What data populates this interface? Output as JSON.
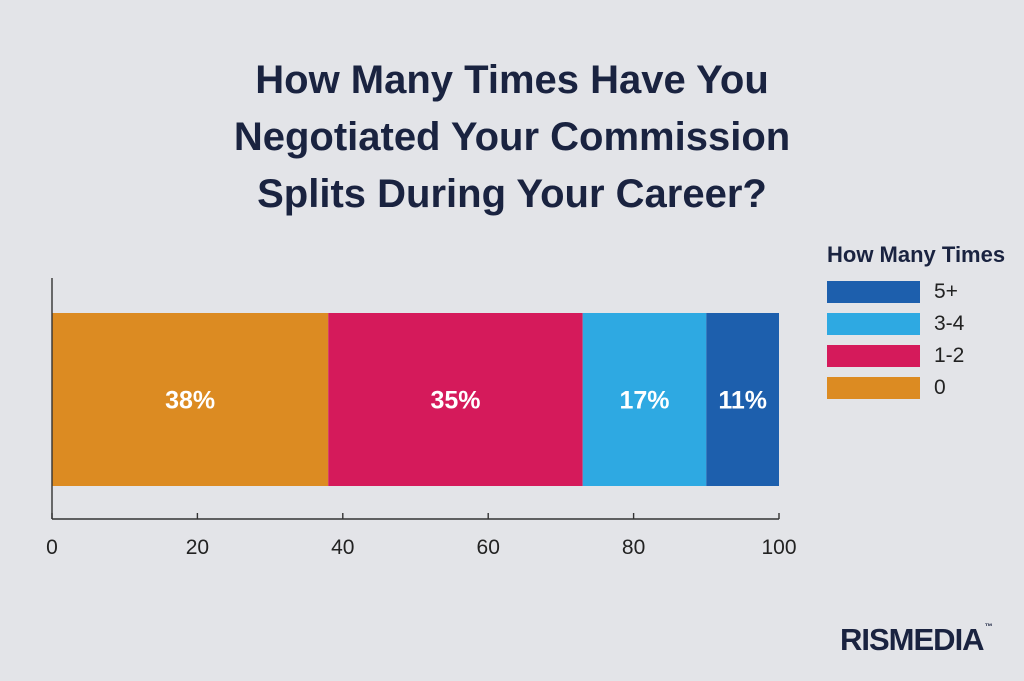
{
  "title_lines": [
    "How Many Times Have You",
    "Negotiated Your Commission",
    "Splits During Your Career?"
  ],
  "chart_data": {
    "type": "bar",
    "orientation": "horizontal",
    "stacked": true,
    "title": "How Many Times Have You Negotiated Your Commission Splits During Your Career?",
    "xlabel": "",
    "ylabel": "",
    "xlim": [
      0,
      100
    ],
    "x_ticks": [
      "0",
      "20",
      "40",
      "60",
      "80",
      "100"
    ],
    "grid": false,
    "legend_title": "How Many Times",
    "legend_position": "right",
    "series": [
      {
        "name": "0",
        "value": 38,
        "label": "38%",
        "color": "#dc8b22"
      },
      {
        "name": "1-2",
        "value": 35,
        "label": "35%",
        "color": "#d51a5b"
      },
      {
        "name": "3-4",
        "value": 17,
        "label": "17%",
        "color": "#2ea9e2"
      },
      {
        "name": "5+",
        "value": 11,
        "label": "11%",
        "color": "#1d5fad"
      }
    ],
    "legend_order": [
      "5+",
      "3-4",
      "1-2",
      "0"
    ]
  },
  "logo": {
    "text": "RISMEDIA",
    "tm": "™"
  }
}
